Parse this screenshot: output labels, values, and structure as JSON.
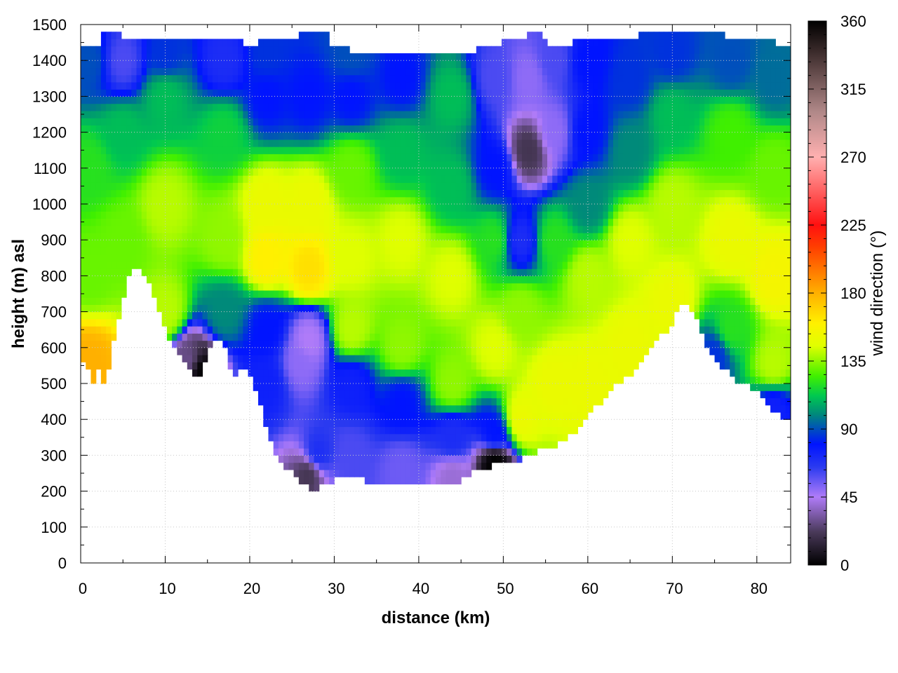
{
  "chart_data": {
    "type": "heatmap",
    "title": "",
    "xlabel": "distance (km)",
    "ylabel": "height (m) asl",
    "colorbar_label": "wind direction (°)",
    "xlim": [
      0,
      84
    ],
    "ylim": [
      0,
      1500
    ],
    "clim": [
      0,
      360
    ],
    "grid": true,
    "x_ticks": [
      0,
      10,
      20,
      30,
      40,
      50,
      60,
      70,
      80
    ],
    "y_ticks": [
      0,
      100,
      200,
      300,
      400,
      500,
      600,
      700,
      800,
      900,
      1000,
      1100,
      1200,
      1300,
      1400,
      1500
    ],
    "colorbar_ticks": [
      0,
      45,
      90,
      135,
      180,
      225,
      270,
      315,
      360
    ],
    "x_tick_labels": [
      "0",
      "10",
      "20",
      "30",
      "40",
      "50",
      "60",
      "70",
      "80"
    ],
    "y_tick_labels": [
      "0",
      "100",
      "200",
      "300",
      "400",
      "500",
      "600",
      "700",
      "800",
      "900",
      "1000",
      "1100",
      "1200",
      "1300",
      "1400",
      "1500"
    ],
    "colorbar_tick_labels": [
      "0",
      "45",
      "90",
      "135",
      "180",
      "225",
      "270",
      "315",
      "360"
    ],
    "colormap": [
      {
        "v": 0,
        "color": "#000000"
      },
      {
        "v": 22,
        "color": "#4a3a5a"
      },
      {
        "v": 45,
        "color": "#b07cf8"
      },
      {
        "v": 65,
        "color": "#2a3af0"
      },
      {
        "v": 80,
        "color": "#0014ff"
      },
      {
        "v": 100,
        "color": "#008a7a"
      },
      {
        "v": 112,
        "color": "#00c850"
      },
      {
        "v": 125,
        "color": "#40f000"
      },
      {
        "v": 145,
        "color": "#e0ff00"
      },
      {
        "v": 160,
        "color": "#fff000"
      },
      {
        "v": 180,
        "color": "#ffb000"
      },
      {
        "v": 210,
        "color": "#ff4000"
      },
      {
        "v": 225,
        "color": "#ff1010"
      },
      {
        "v": 270,
        "color": "#ffb0b0"
      },
      {
        "v": 300,
        "color": "#b08888"
      },
      {
        "v": 340,
        "color": "#3a2a2a"
      },
      {
        "v": 360,
        "color": "#000000"
      }
    ],
    "terrain_profile": {
      "x": [
        0,
        0.5,
        1,
        1.5,
        2,
        2.5,
        3,
        3.5,
        4,
        5,
        6,
        6.5,
        7,
        8,
        9,
        10,
        11,
        12,
        13,
        14,
        14.5,
        15,
        16,
        17,
        17.5,
        18,
        19,
        20,
        21,
        22,
        23,
        24,
        25,
        26,
        27,
        28,
        29,
        30,
        32,
        35,
        38,
        40,
        42,
        44,
        46,
        48,
        50,
        52,
        54,
        56,
        58,
        60,
        62,
        64,
        66,
        68,
        70,
        71,
        72,
        73,
        74,
        75,
        76,
        77,
        78,
        80,
        82,
        83,
        83.5
      ],
      "y": [
        640,
        500,
        560,
        500,
        560,
        500,
        500,
        560,
        640,
        740,
        820,
        830,
        810,
        790,
        720,
        650,
        600,
        570,
        530,
        520,
        550,
        580,
        620,
        600,
        560,
        520,
        540,
        535,
        460,
        370,
        310,
        270,
        250,
        230,
        210,
        210,
        220,
        230,
        235,
        225,
        225,
        215,
        230,
        220,
        245,
        265,
        280,
        290,
        310,
        325,
        355,
        410,
        460,
        510,
        545,
        610,
        670,
        710,
        720,
        680,
        600,
        570,
        540,
        520,
        500,
        480,
        420,
        400,
        400
      ]
    },
    "top_profile": {
      "x": [
        0,
        2,
        3,
        5,
        7,
        9,
        12,
        15,
        18,
        20,
        22,
        24,
        27,
        29,
        30,
        32,
        35,
        40,
        43,
        45,
        50,
        54,
        56,
        60,
        62,
        64,
        66,
        68,
        70,
        72,
        74,
        76,
        78,
        80,
        82,
        83.5
      ],
      "y": [
        1450,
        1440,
        1490,
        1470,
        1460,
        1470,
        1460,
        1470,
        1460,
        1440,
        1460,
        1450,
        1480,
        1490,
        1430,
        1430,
        1420,
        1420,
        1430,
        1420,
        1450,
        1480,
        1440,
        1460,
        1450,
        1460,
        1470,
        1470,
        1480,
        1470,
        1470,
        1470,
        1460,
        1470,
        1450,
        1440
      ]
    },
    "wind_direction_field": {
      "description_keys": [
        "x_km",
        "z_m",
        "direction_deg"
      ],
      "samples": [
        [
          1,
          560,
          180
        ],
        [
          1,
          800,
          130
        ],
        [
          1,
          1100,
          120
        ],
        [
          1,
          1400,
          90
        ],
        [
          5,
          900,
          130
        ],
        [
          5,
          1200,
          110
        ],
        [
          5,
          1400,
          60
        ],
        [
          10,
          700,
          140
        ],
        [
          10,
          1000,
          140
        ],
        [
          10,
          1300,
          110
        ],
        [
          10,
          1420,
          85
        ],
        [
          13,
          560,
          30
        ],
        [
          14,
          540,
          0
        ],
        [
          17,
          700,
          100
        ],
        [
          17,
          900,
          135
        ],
        [
          17,
          1200,
          115
        ],
        [
          17,
          1400,
          70
        ],
        [
          22,
          500,
          75
        ],
        [
          22,
          650,
          80
        ],
        [
          22,
          850,
          160
        ],
        [
          22,
          1000,
          150
        ],
        [
          22,
          1300,
          80
        ],
        [
          22,
          1420,
          85
        ],
        [
          26,
          560,
          50
        ],
        [
          27,
          620,
          45
        ],
        [
          27,
          820,
          165
        ],
        [
          27,
          1000,
          150
        ],
        [
          27,
          1300,
          80
        ],
        [
          27,
          250,
          20
        ],
        [
          28,
          300,
          70
        ],
        [
          32,
          300,
          60
        ],
        [
          32,
          500,
          75
        ],
        [
          32,
          650,
          140
        ],
        [
          32,
          850,
          145
        ],
        [
          32,
          1100,
          130
        ],
        [
          32,
          1300,
          80
        ],
        [
          32,
          1420,
          90
        ],
        [
          38,
          260,
          55
        ],
        [
          38,
          450,
          80
        ],
        [
          38,
          600,
          135
        ],
        [
          38,
          900,
          145
        ],
        [
          38,
          1150,
          110
        ],
        [
          38,
          1350,
          80
        ],
        [
          44,
          240,
          40
        ],
        [
          44,
          350,
          70
        ],
        [
          44,
          500,
          135
        ],
        [
          44,
          800,
          145
        ],
        [
          44,
          1050,
          110
        ],
        [
          44,
          1300,
          110
        ],
        [
          49,
          280,
          0
        ],
        [
          49,
          360,
          80
        ],
        [
          49,
          600,
          145
        ],
        [
          49,
          900,
          120
        ],
        [
          49,
          1100,
          80
        ],
        [
          49,
          1350,
          60
        ],
        [
          52,
          400,
          150
        ],
        [
          52,
          700,
          135
        ],
        [
          52,
          900,
          70
        ],
        [
          53,
          1150,
          20
        ],
        [
          53,
          1350,
          50
        ],
        [
          56,
          500,
          150
        ],
        [
          56,
          900,
          120
        ],
        [
          56,
          1200,
          50
        ],
        [
          56,
          1400,
          60
        ],
        [
          60,
          500,
          150
        ],
        [
          60,
          800,
          140
        ],
        [
          60,
          1000,
          100
        ],
        [
          60,
          1200,
          80
        ],
        [
          60,
          1400,
          80
        ],
        [
          65,
          600,
          150
        ],
        [
          65,
          900,
          145
        ],
        [
          65,
          1150,
          100
        ],
        [
          65,
          1350,
          85
        ],
        [
          70,
          720,
          150
        ],
        [
          70,
          1000,
          140
        ],
        [
          70,
          1250,
          110
        ],
        [
          70,
          1420,
          85
        ],
        [
          75,
          580,
          85
        ],
        [
          77,
          650,
          120
        ],
        [
          77,
          900,
          150
        ],
        [
          77,
          1200,
          125
        ],
        [
          77,
          1400,
          90
        ],
        [
          82,
          430,
          75
        ],
        [
          82,
          550,
          140
        ],
        [
          82,
          800,
          155
        ],
        [
          82,
          1100,
          130
        ],
        [
          82,
          1350,
          95
        ]
      ]
    }
  }
}
